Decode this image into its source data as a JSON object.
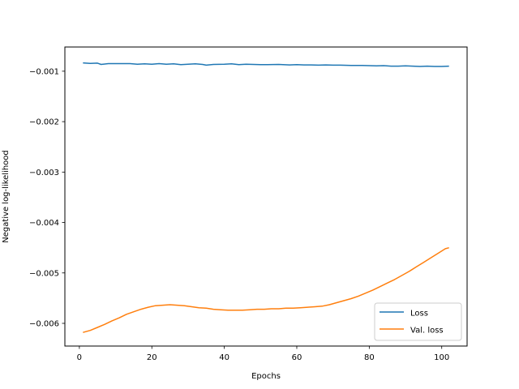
{
  "chart_data": {
    "type": "line",
    "xlabel": "Epochs",
    "ylabel": "Negative log-likelihood",
    "xlim": [
      -4,
      107
    ],
    "ylim": [
      -0.00645,
      -0.00052
    ],
    "x_ticks": [
      0,
      20,
      40,
      60,
      80,
      100
    ],
    "x_tick_labels": [
      "0",
      "20",
      "40",
      "60",
      "80",
      "100"
    ],
    "y_ticks": [
      -0.006,
      -0.005,
      -0.004,
      -0.003,
      -0.002,
      -0.001
    ],
    "y_tick_labels": [
      "−0.006",
      "−0.005",
      "−0.004",
      "−0.003",
      "−0.002",
      "−0.001"
    ],
    "grid": false,
    "legend_position": "lower-right",
    "series": [
      {
        "name": "Loss",
        "color": "#1f77b4",
        "x": [
          1,
          3,
          5,
          6,
          8,
          10,
          12,
          14,
          16,
          18,
          20,
          22,
          24,
          26,
          28,
          30,
          32,
          34,
          35,
          37,
          40,
          42,
          44,
          46,
          48,
          50,
          52,
          55,
          58,
          60,
          62,
          64,
          66,
          68,
          70,
          72,
          75,
          78,
          80,
          82,
          84,
          86,
          88,
          90,
          92,
          94,
          96,
          98,
          100,
          102
        ],
        "y": [
          -0.000835,
          -0.000845,
          -0.00084,
          -0.000865,
          -0.00085,
          -0.00085,
          -0.00085,
          -0.00085,
          -0.00086,
          -0.000855,
          -0.00086,
          -0.00085,
          -0.00086,
          -0.000855,
          -0.00087,
          -0.00086,
          -0.000855,
          -0.000865,
          -0.00088,
          -0.000865,
          -0.00086,
          -0.000855,
          -0.00087,
          -0.00086,
          -0.000865,
          -0.00087,
          -0.00087,
          -0.000865,
          -0.000875,
          -0.00087,
          -0.000875,
          -0.000875,
          -0.00088,
          -0.000875,
          -0.00088,
          -0.00088,
          -0.000885,
          -0.000885,
          -0.00089,
          -0.000895,
          -0.00089,
          -0.0009,
          -0.0009,
          -0.000895,
          -0.0009,
          -0.000905,
          -0.0009,
          -0.000905,
          -0.000905,
          -0.0009
        ]
      },
      {
        "name": "Val. loss",
        "color": "#ff7f0e",
        "x": [
          1,
          3,
          5,
          7,
          9,
          11,
          13,
          15,
          17,
          19,
          21,
          23,
          25,
          27,
          29,
          31,
          33,
          35,
          37,
          39,
          41,
          43,
          45,
          47,
          49,
          51,
          53,
          55,
          57,
          59,
          61,
          63,
          65,
          67,
          69,
          71,
          73,
          75,
          77,
          79,
          81,
          83,
          85,
          87,
          89,
          91,
          93,
          95,
          97,
          99,
          101,
          102
        ],
        "y": [
          -0.00618,
          -0.00614,
          -0.00608,
          -0.00602,
          -0.00595,
          -0.00589,
          -0.00582,
          -0.00577,
          -0.00572,
          -0.00568,
          -0.00565,
          -0.00564,
          -0.00563,
          -0.00564,
          -0.00565,
          -0.00567,
          -0.00569,
          -0.0057,
          -0.00572,
          -0.00573,
          -0.00574,
          -0.00574,
          -0.00574,
          -0.00573,
          -0.00572,
          -0.00572,
          -0.00571,
          -0.00571,
          -0.0057,
          -0.0057,
          -0.00569,
          -0.00568,
          -0.00567,
          -0.00566,
          -0.00563,
          -0.00559,
          -0.00555,
          -0.00551,
          -0.00546,
          -0.0054,
          -0.00534,
          -0.00527,
          -0.0052,
          -0.00513,
          -0.00505,
          -0.00497,
          -0.00488,
          -0.00479,
          -0.0047,
          -0.00461,
          -0.00452,
          -0.0045
        ]
      }
    ]
  }
}
